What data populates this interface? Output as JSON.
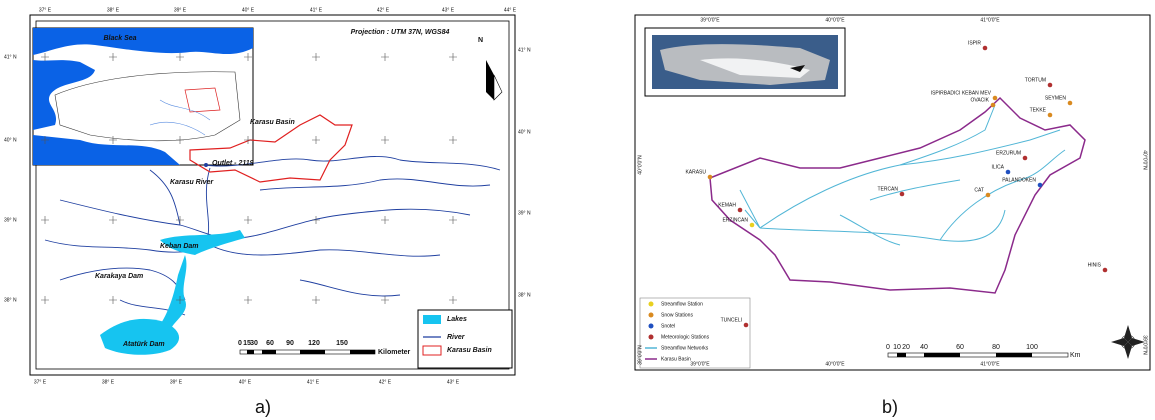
{
  "panel_a": {
    "caption": "a)",
    "projection": "Projection : UTM 37N, WGS84",
    "north": "N",
    "top_lon": [
      "37° E",
      "38° E",
      "39° E",
      "40° E",
      "41° E",
      "42° E",
      "43° E",
      "44° E"
    ],
    "bottom_lon": [
      "37° E",
      "38° E",
      "39° E",
      "40° E",
      "41° E",
      "42° E",
      "43° E"
    ],
    "left_lat": [
      "41° N",
      "40° N",
      "39° N",
      "38° N"
    ],
    "right_lat": [
      "41° N",
      "40° N",
      "39° N",
      "38° N"
    ],
    "inset_label": "Black Sea",
    "map_labels": [
      "Karasu Basin",
      "Outlet - 2119",
      "Karasu River",
      "Keban Dam",
      "Karakaya Dam",
      "Atatürk Dam"
    ],
    "legend": [
      "Lakes",
      "River",
      "Karasu Basin"
    ],
    "scale": [
      "0",
      "15",
      "30",
      "60",
      "90",
      "120",
      "150"
    ],
    "scale_unit": "Kilometer"
  },
  "panel_b": {
    "caption": "b)",
    "top_lon": [
      "39°0'0\"E",
      "40°0'0\"E",
      "41°0'0\"E"
    ],
    "bottom_lon": [
      "39°0'0\"E",
      "40°0'0\"E",
      "41°0'0\"E"
    ],
    "left_lat": [
      "40°0'0\"N",
      "39°0'0\"N"
    ],
    "right_lat": [
      "40°0'0\"N",
      "39°0'0\"N"
    ],
    "stations": [
      "ISPIR",
      "TORTUM",
      "ISPIRBADICI KEBAN MEV",
      "OVACIK",
      "SEYMEN",
      "TEKKE",
      "ERZURUM",
      "ILICA",
      "PALANDOKEN",
      "TERCAN",
      "CAT",
      "KARASU",
      "KEMAH",
      "ERZINCAN",
      "HINIS",
      "TUNCELI"
    ],
    "legend": [
      "Streamflow Station",
      "Snow Stations",
      "Snotel",
      "Meteorologic Stations",
      "Streamflow Networks",
      "Karasu Basin"
    ],
    "scale": [
      "0",
      "10",
      "20",
      "40",
      "60",
      "80",
      "100"
    ],
    "scale_unit": "Km"
  }
}
